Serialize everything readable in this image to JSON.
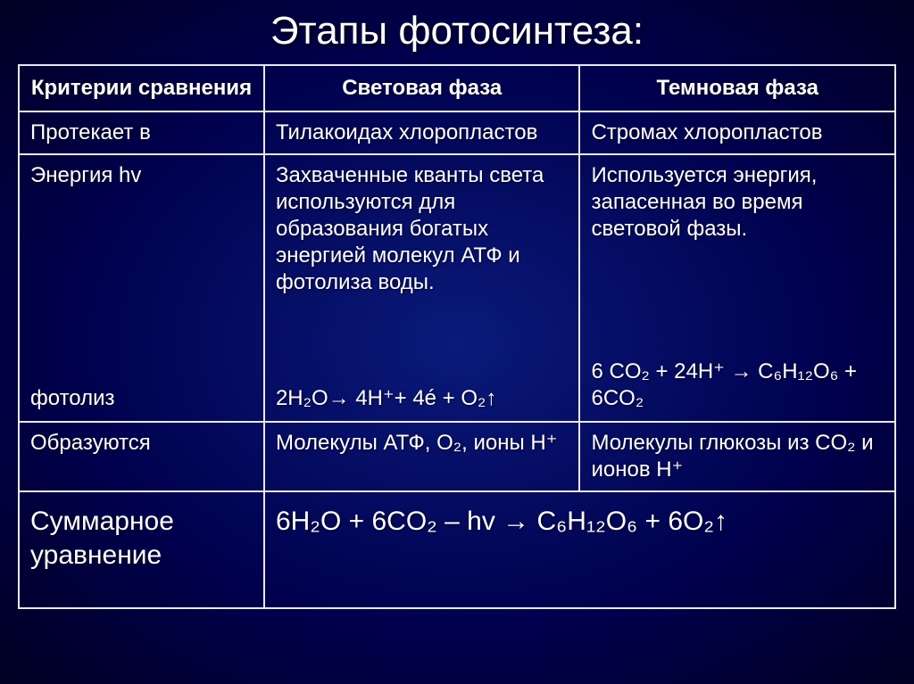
{
  "title": "Этапы фотосинтеза:",
  "headers": {
    "col1": "Критерии сравнения",
    "col2": "Световая фаза",
    "col3": "Темновая фаза"
  },
  "rows": {
    "location": {
      "label": "Протекает в",
      "light": "Тилакоидах хлоропластов",
      "dark": "Стромах хлоропластов"
    },
    "energy": {
      "label_top": "Энергия hv",
      "label_bottom": "фотолиз",
      "light_top": "Захваченные  кванты света используются для образования богатых энергией молекул АТФ и фотолиза воды.",
      "light_bottom": "2H₂O→ 4H⁺+ 4é + O₂↑",
      "dark_top": "Используется энергия, запасенная во время световой фазы.",
      "dark_bottom": "6 CO₂ + 24H⁺ → C₆H₁₂O₆ + 6CO₂"
    },
    "products": {
      "label": "Образуются",
      "light": "Молекулы АТФ, O₂, ионы H⁺",
      "dark": "Молекулы глюкозы из CO₂ и ионов H⁺"
    },
    "summary": {
      "label": "Суммарное уравнение",
      "equation": "6H₂O + 6CO₂ – hv → C₆H₁₂O₆ + 6O₂↑"
    }
  }
}
